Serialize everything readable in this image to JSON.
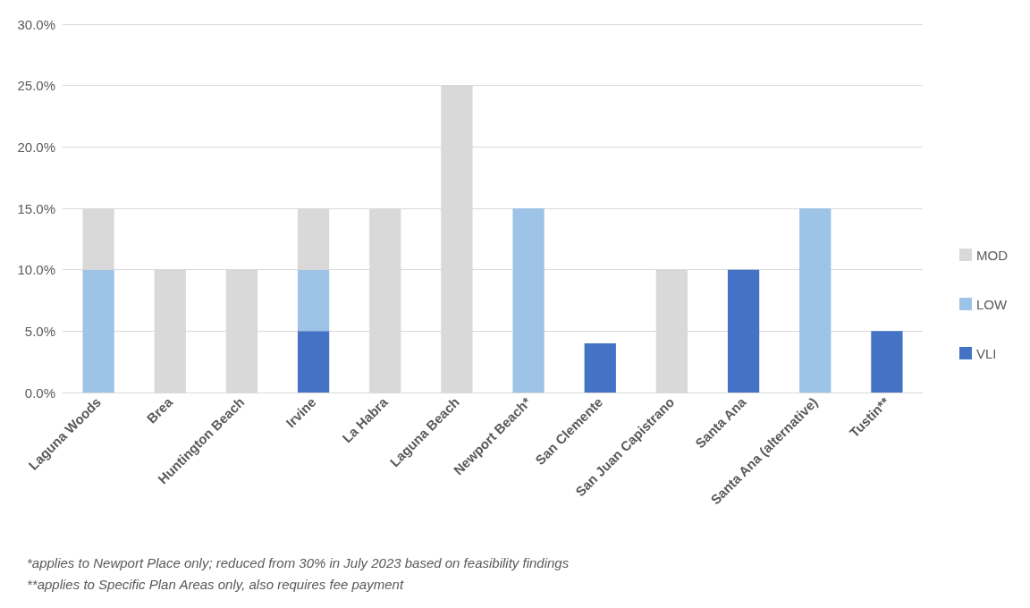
{
  "chart_data": {
    "type": "bar",
    "stacked": true,
    "categories": [
      "Laguna Woods",
      "Brea",
      "Huntington Beach",
      "Irvine",
      "La Habra",
      "Laguna Beach",
      "Newport Beach*",
      "San Clemente",
      "San Juan Capistrano",
      "Santa Ana",
      "Santa Ana (alternative)",
      "Tustin**"
    ],
    "series": [
      {
        "name": "VLI",
        "color": "#4472c4",
        "values": [
          null,
          null,
          null,
          5,
          null,
          null,
          null,
          4,
          null,
          10,
          null,
          5
        ]
      },
      {
        "name": "LOW",
        "color": "#9dc3e6",
        "values": [
          10,
          null,
          null,
          5,
          null,
          null,
          15,
          null,
          null,
          null,
          15,
          null
        ]
      },
      {
        "name": "MOD",
        "color": "#d9d9d9",
        "values": [
          5,
          10,
          10,
          5,
          15,
          25,
          null,
          null,
          10,
          null,
          null,
          null
        ]
      }
    ],
    "ylim": [
      0,
      30
    ],
    "yticks": [
      {
        "value": 0,
        "label": "0.0%"
      },
      {
        "value": 5,
        "label": "5.0%"
      },
      {
        "value": 10,
        "label": "10.0%"
      },
      {
        "value": 15,
        "label": "15.0%"
      },
      {
        "value": 20,
        "label": "20.0%"
      },
      {
        "value": 25,
        "label": "25.0%"
      },
      {
        "value": 30,
        "label": "30.0%"
      }
    ],
    "grid": "y",
    "legend": "right",
    "annotations": [
      "*applies to Newport Place only; reduced from 30% in July 2023 based on feasibility findings",
      "**applies to Specific Plan Areas only, also requires fee payment"
    ]
  }
}
